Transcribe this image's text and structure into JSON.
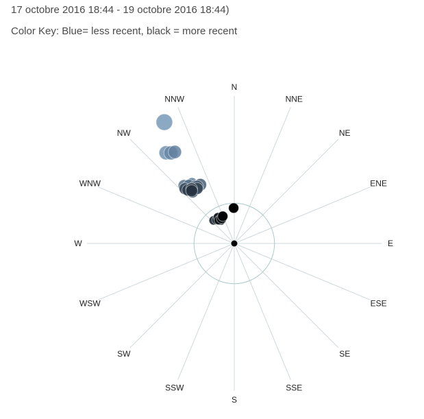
{
  "header": {
    "date_range": "17 octobre 2016 18:44 - 19 octobre 2016 18:44)",
    "color_key": "Color Key: Blue= less recent, black = more recent"
  },
  "colors": {
    "spoke": "#cfd8dc",
    "ring": "#a9c9c9",
    "oldest": "#6f93b5",
    "newest": "#000000",
    "center": "#000000"
  },
  "chart_data": {
    "type": "scatter",
    "projection": "polar",
    "title": "",
    "directions": [
      "N",
      "NNE",
      "NE",
      "ENE",
      "E",
      "ESE",
      "SE",
      "SSE",
      "S",
      "SSW",
      "SW",
      "WSW",
      "W",
      "WNW",
      "NW",
      "NNW"
    ],
    "axis_range": [
      0,
      1
    ],
    "inner_ring": 0.25,
    "points_oldest_to_newest": [
      {
        "bearing": 330,
        "distance": 0.95,
        "size": 1.0
      },
      {
        "bearing": 323,
        "distance": 0.77,
        "size": 0.85
      },
      {
        "bearing": 325,
        "distance": 0.75,
        "size": 0.85
      },
      {
        "bearing": 327,
        "distance": 0.74,
        "size": 0.8
      },
      {
        "bearing": 325,
        "distance": 0.5,
        "size": 0.65
      },
      {
        "bearing": 319,
        "distance": 0.52,
        "size": 0.72
      },
      {
        "bearing": 322,
        "distance": 0.5,
        "size": 0.72
      },
      {
        "bearing": 326,
        "distance": 0.47,
        "size": 0.72
      },
      {
        "bearing": 330,
        "distance": 0.46,
        "size": 0.75
      },
      {
        "bearing": 327,
        "distance": 0.46,
        "size": 0.75
      },
      {
        "bearing": 321,
        "distance": 0.45,
        "size": 0.72
      },
      {
        "bearing": 318,
        "distance": 0.5,
        "size": 0.72
      },
      {
        "bearing": 326,
        "distance": 0.45,
        "size": 0.72
      },
      {
        "bearing": 319,
        "distance": 0.48,
        "size": 0.72
      },
      {
        "bearing": 322,
        "distance": 0.47,
        "size": 0.72
      },
      {
        "bearing": 321,
        "distance": 0.46,
        "size": 0.72
      },
      {
        "bearing": 318,
        "distance": 0.21,
        "size": 0.55
      },
      {
        "bearing": 323,
        "distance": 0.2,
        "size": 0.55
      },
      {
        "bearing": 330,
        "distance": 0.18,
        "size": 0.55
      },
      {
        "bearing": 328,
        "distance": 0.21,
        "size": 0.55
      },
      {
        "bearing": 326,
        "distance": 0.19,
        "size": 0.55
      },
      {
        "bearing": 333,
        "distance": 0.19,
        "size": 0.62
      },
      {
        "bearing": 337,
        "distance": 0.2,
        "size": 0.62
      },
      {
        "bearing": 359,
        "distance": 0.24,
        "size": 0.62
      }
    ]
  }
}
